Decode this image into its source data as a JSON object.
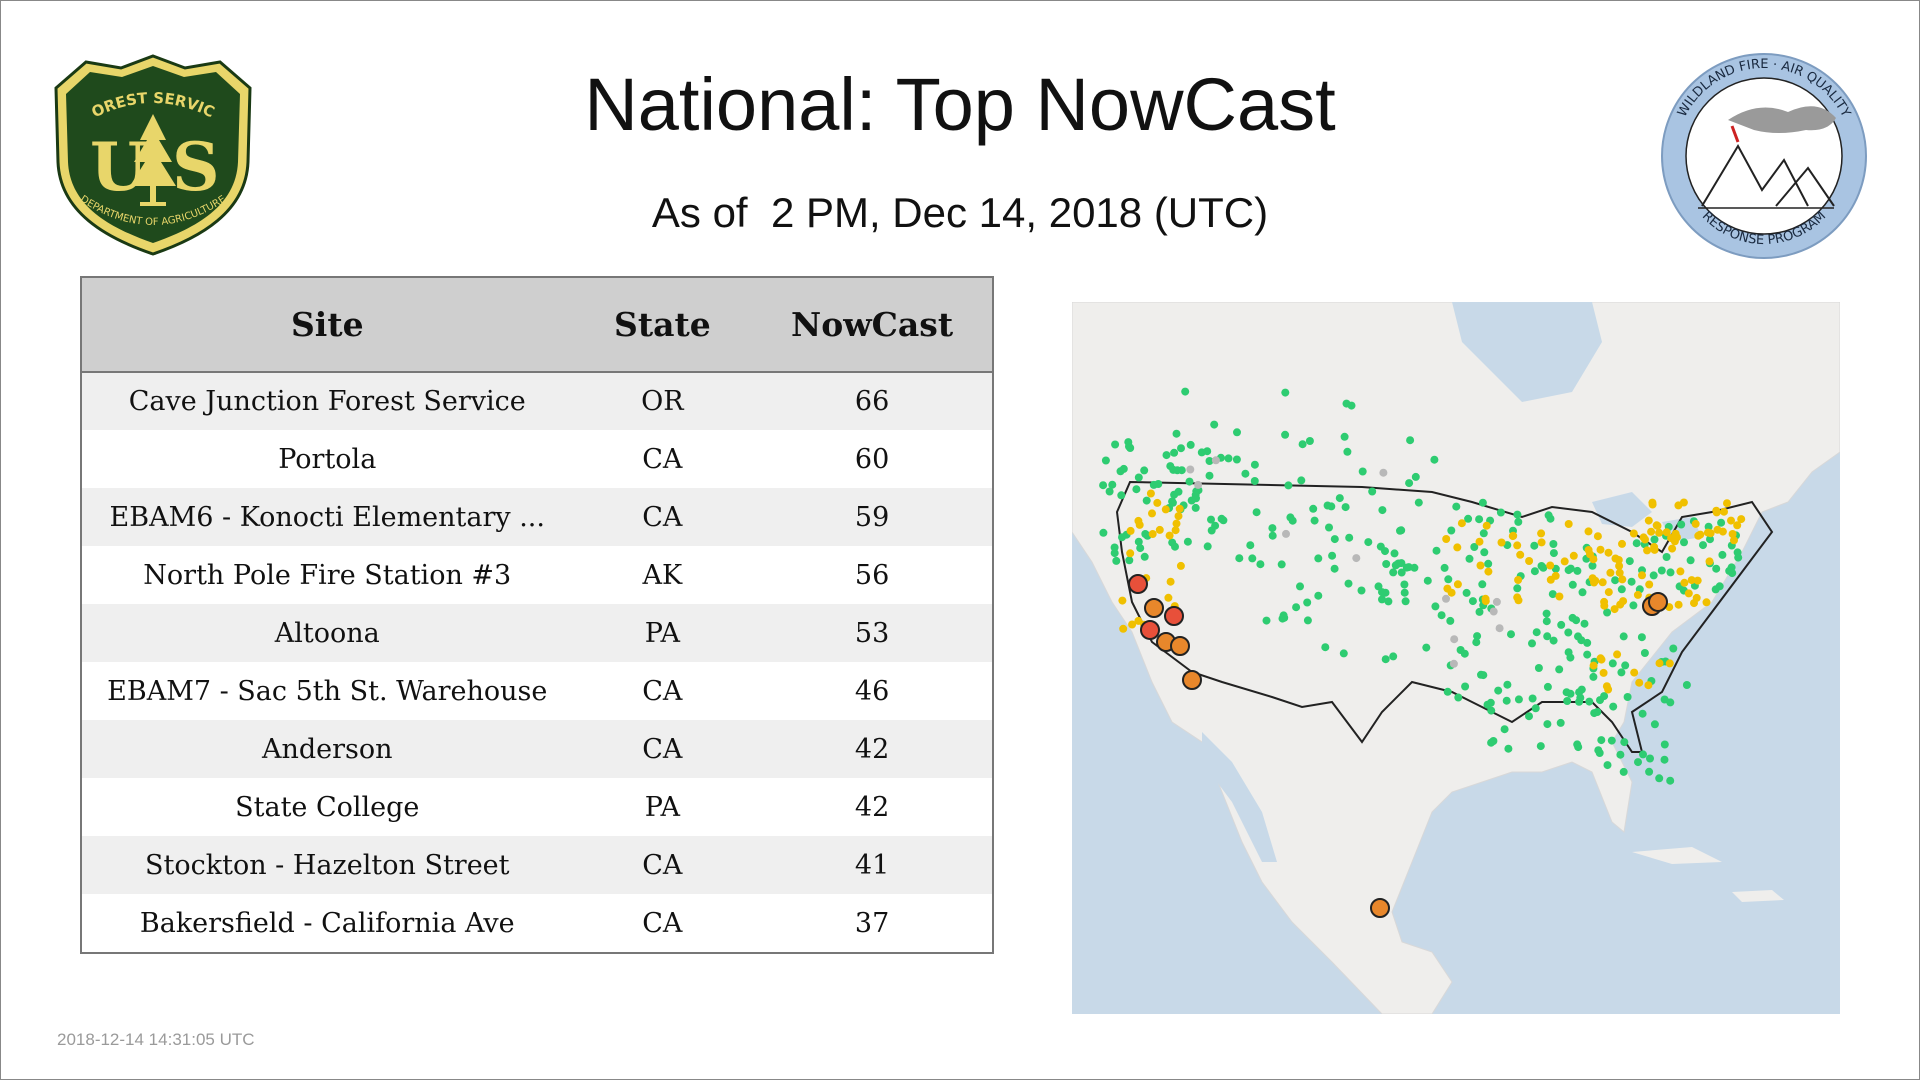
{
  "header": {
    "title": "National: Top NowCast",
    "subtitle": "As of  2 PM, Dec 14, 2018 (UTC)"
  },
  "logos": {
    "usfs": {
      "top_text": "FOREST SERVICE",
      "letters_left": "U",
      "letters_right": "S",
      "bottom_text": "DEPARTMENT OF AGRICULTURE",
      "icon": "usfs-shield-icon"
    },
    "wfaq": {
      "top_text": "WILDLAND FIRE · AIR QUALITY",
      "bottom_text": "RESPONSE PROGRAM",
      "icon": "wfaq-mountains-icon"
    }
  },
  "table": {
    "headers": [
      "Site",
      "State",
      "NowCast"
    ],
    "rows": [
      {
        "site": "Cave Junction Forest Service",
        "state": "OR",
        "nowcast": "66"
      },
      {
        "site": "Portola",
        "state": "CA",
        "nowcast": "60"
      },
      {
        "site": "EBAM6 - Konocti Elementary ...",
        "state": "CA",
        "nowcast": "59"
      },
      {
        "site": "North Pole Fire Station #3",
        "state": "AK",
        "nowcast": "56"
      },
      {
        "site": "Altoona",
        "state": "PA",
        "nowcast": "53"
      },
      {
        "site": "EBAM7 - Sac 5th St. Warehouse",
        "state": "CA",
        "nowcast": "46"
      },
      {
        "site": "Anderson",
        "state": "CA",
        "nowcast": "42"
      },
      {
        "site": "State College",
        "state": "PA",
        "nowcast": "42"
      },
      {
        "site": "Stockton - Hazelton Street",
        "state": "CA",
        "nowcast": "41"
      },
      {
        "site": "Bakersfield - California Ave",
        "state": "CA",
        "nowcast": "37"
      }
    ]
  },
  "map": {
    "colors": {
      "water": "#c8d9e8",
      "land": "#efeeec",
      "good": "#2ecc71",
      "moderate": "#f0c000",
      "usg": "#e8872b",
      "unhealthy": "#e8503a",
      "no_data": "#b8b8b8"
    }
  },
  "footer": {
    "timestamp": "2018-12-14 14:31:05 UTC"
  }
}
